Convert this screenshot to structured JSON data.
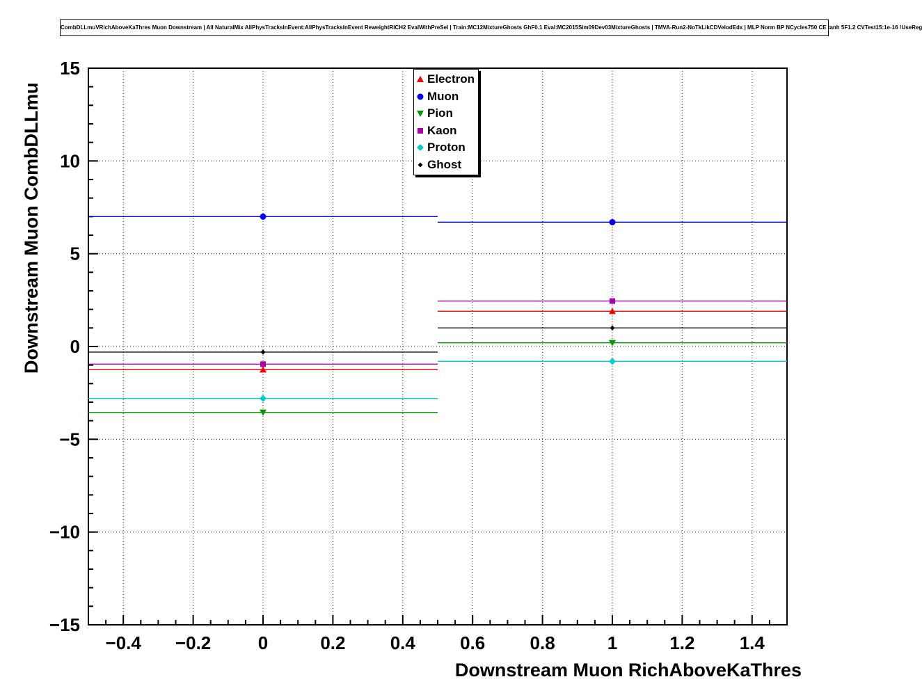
{
  "title": "CombDLLmuVRichAboveKaThres Muon Downstream | All NaturalMix AllPhysTracksInEvent:AllPhysTracksInEvent ReweightRICH2 EvalWithPreSel | Train:MC12MixtureGhosts GhF0.1 Eval:MC2015Sim09Dev03MixtureGhosts | TMVA-Run2-NoTkLikCDVelodEdx | MLP Norm BP NCycles750 CE tanh 5F1.2 CVTest15:1e-16 !UseReg",
  "chart_data": {
    "type": "line",
    "title": "CombDLLmuVRichAboveKaThres Muon Downstream",
    "xlabel": "Downstream Muon RichAboveKaThres",
    "ylabel": "Downstream Muon CombDLLmu",
    "xlim": [
      -0.5,
      1.5
    ],
    "ylim": [
      -15,
      15
    ],
    "grid": true,
    "legend_position": "top-center",
    "x_ticks": [
      -0.4,
      -0.2,
      0,
      0.2,
      0.4,
      0.6,
      0.8,
      1,
      1.2,
      1.4
    ],
    "x_tick_labels": [
      "−0.4",
      "−0.2",
      "0",
      "0.2",
      "0.4",
      "0.6",
      "0.8",
      "1",
      "1.2",
      "1.4"
    ],
    "x_minor_step": 0.05,
    "y_ticks": [
      -15,
      -10,
      -5,
      0,
      5,
      10,
      15
    ],
    "y_tick_labels": [
      "−15",
      "−10",
      "−5",
      "0",
      "5",
      "10",
      "15"
    ],
    "y_minor_step": 1,
    "bins": [
      {
        "low": -0.5,
        "center": 0,
        "high": 0.5
      },
      {
        "low": 0.5,
        "center": 1,
        "high": 1.5
      }
    ],
    "series": [
      {
        "name": "Electron",
        "marker": "triangle-up",
        "color": "#ff0000",
        "values": [
          -1.25,
          1.9
        ],
        "yerr": 0.12
      },
      {
        "name": "Muon",
        "marker": "circle",
        "color": "#0000ff",
        "values": [
          7.0,
          6.7
        ],
        "yerr": 0.12
      },
      {
        "name": "Pion",
        "marker": "triangle-down",
        "color": "#009900",
        "values": [
          -3.55,
          0.2
        ],
        "yerr": 0.12
      },
      {
        "name": "Kaon",
        "marker": "square",
        "color": "#aa00aa",
        "values": [
          -0.95,
          2.45
        ],
        "yerr": 0.12
      },
      {
        "name": "Proton",
        "marker": "diamond",
        "color": "#00cccc",
        "values": [
          -2.8,
          -0.8
        ],
        "yerr": 0.12
      },
      {
        "name": "Ghost",
        "marker": "small-diamond",
        "color": "#000000",
        "values": [
          -0.3,
          1.0
        ],
        "yerr": 0.12
      }
    ]
  }
}
